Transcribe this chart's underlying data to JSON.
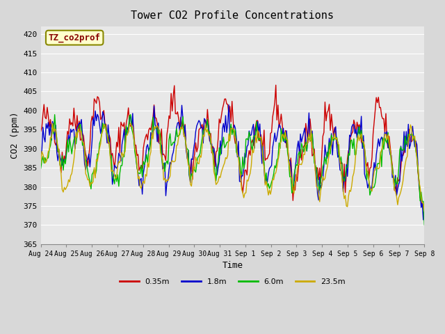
{
  "title": "Tower CO2 Profile Concentrations",
  "xlabel": "Time",
  "ylabel": "CO2 (ppm)",
  "ylim": [
    365,
    422
  ],
  "yticks": [
    365,
    370,
    375,
    380,
    385,
    390,
    395,
    400,
    405,
    410,
    415,
    420
  ],
  "bg_color": "#e8e8e8",
  "plot_bg_color": "#e8e8e8",
  "series": [
    "0.35m",
    "1.8m",
    "6.0m",
    "23.5m"
  ],
  "colors": [
    "#cc0000",
    "#0000cc",
    "#00bb00",
    "#ccaa00"
  ],
  "annotation_text": "TZ_co2prof",
  "annotation_bg": "#ffffcc",
  "annotation_border": "#888800",
  "annotation_color": "#880000",
  "x_start_day": 0,
  "n_days": 15,
  "n_points": 360,
  "xtick_labels": [
    "Aug 24",
    "Aug 25",
    "Aug 26",
    "Aug 27",
    "Aug 28",
    "Aug 29",
    "Aug 30",
    "Aug 31",
    "Sep 1",
    "Sep 2",
    "Sep 3",
    "Sep 4",
    "Sep 5",
    "Sep 6",
    "Sep 7",
    "Sep 8"
  ],
  "xtick_positions": [
    0,
    1,
    2,
    3,
    4,
    5,
    6,
    7,
    8,
    9,
    10,
    11,
    12,
    13,
    14,
    15
  ]
}
